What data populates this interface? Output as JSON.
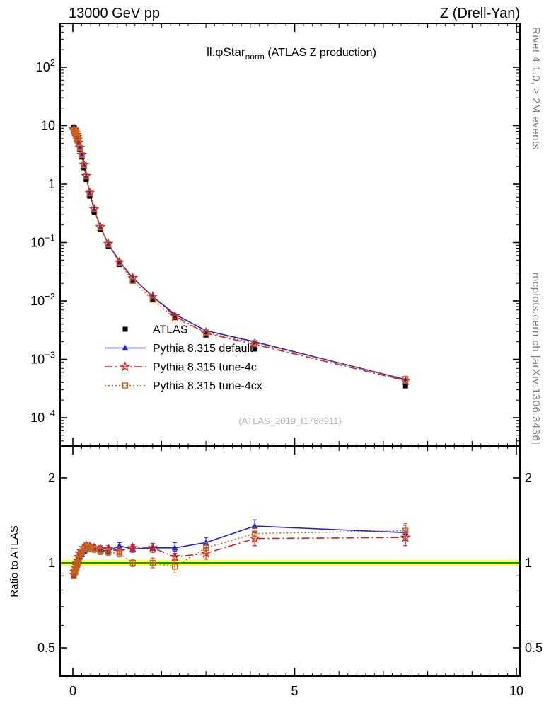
{
  "header": {
    "left": "13000 GeV pp",
    "right": "Z (Drell-Yan)"
  },
  "titles": {
    "observable": "ll.φStar",
    "subscript": "norm",
    "suffix": " (ATLAS Z production)"
  },
  "watermark": "(ATLAS_2019_I1768911)",
  "side_labels": {
    "rivet": "Rivet 4.1.0, ≥ 2M events",
    "mcplots": "mcplots.cern.ch [arXiv:1306.3436]"
  },
  "ratio_axis_label": "Ratio to ATLAS",
  "colors": {
    "band": "#ffff4c",
    "reference_line": "#00a000",
    "frame": "#000000"
  },
  "chart_data": {
    "type": "scatter-line",
    "title": "ll.φStar_norm (ATLAS Z production)",
    "xlabel": "",
    "ylabel": "",
    "ratio_ylabel": "Ratio to ATLAS",
    "legend_position": "middle-left",
    "x_axis": {
      "lim": [
        -0.29,
        10.08
      ],
      "major_ticks": [
        0,
        5,
        10
      ],
      "minor_tick_step": 1
    },
    "main_panel": {
      "yscale": "log",
      "ylim": [
        3.3e-05,
        560
      ],
      "tick_exponents": [
        2,
        1,
        0,
        -1,
        -2,
        -3,
        -4
      ]
    },
    "ratio_panel": {
      "yscale": "log",
      "ylim": [
        0.4,
        2.59
      ],
      "ticks": [
        2,
        1,
        0.5
      ],
      "ref_band": {
        "center": 1.0,
        "half_width": 0.025
      }
    },
    "x": [
      0.02,
      0.035,
      0.05,
      0.065,
      0.08,
      0.095,
      0.11,
      0.13,
      0.16,
      0.2,
      0.25,
      0.3,
      0.38,
      0.48,
      0.62,
      0.8,
      1.05,
      1.35,
      1.8,
      2.3,
      3.0,
      4.1,
      7.5
    ],
    "series": [
      {
        "name": "ATLAS",
        "role": "reference-data",
        "color": "#000000",
        "marker": "filled-square",
        "line": "none",
        "y_err_rel": 0.04,
        "values": [
          9.5,
          9.0,
          8.4,
          7.8,
          7.1,
          6.4,
          5.7,
          4.9,
          3.9,
          2.9,
          1.9,
          1.2,
          0.62,
          0.33,
          0.165,
          0.085,
          0.042,
          0.022,
          0.0105,
          0.0052,
          0.0026,
          0.0015,
          0.00035
        ]
      },
      {
        "name": "Pythia 8.315 default",
        "role": "mc-prediction",
        "color": "#2222cc",
        "marker": "filled-triangle",
        "line": "solid",
        "values": [
          8.55,
          8.28,
          7.81,
          7.41,
          6.82,
          6.27,
          5.7,
          5.0,
          4.1,
          3.1,
          2.09,
          1.34,
          0.7,
          0.37,
          0.183,
          0.0935,
          0.0483,
          0.0246,
          0.0119,
          0.0059,
          0.0031,
          0.002,
          0.00045
        ],
        "ratio": [
          0.9,
          0.92,
          0.93,
          0.95,
          0.96,
          0.98,
          1.0,
          1.02,
          1.05,
          1.07,
          1.1,
          1.12,
          1.13,
          1.12,
          1.11,
          1.1,
          1.15,
          1.12,
          1.13,
          1.13,
          1.18,
          1.35,
          1.28
        ],
        "ratio_err": [
          0.02,
          0.02,
          0.02,
          0.02,
          0.02,
          0.02,
          0.02,
          0.02,
          0.02,
          0.02,
          0.02,
          0.03,
          0.03,
          0.03,
          0.03,
          0.03,
          0.03,
          0.03,
          0.04,
          0.05,
          0.05,
          0.07,
          0.08
        ]
      },
      {
        "name": "Pythia 8.315 tune-4c",
        "role": "mc-prediction",
        "color": "#cc2222",
        "marker": "open-star",
        "line": "dash-dot",
        "values": [
          8.65,
          8.37,
          7.9,
          7.49,
          6.96,
          6.4,
          5.81,
          5.15,
          4.21,
          3.19,
          2.15,
          1.38,
          0.71,
          0.373,
          0.185,
          0.0952,
          0.0462,
          0.0249,
          0.0119,
          0.0055,
          0.0028,
          0.0018,
          0.00043
        ],
        "ratio": [
          0.91,
          0.93,
          0.94,
          0.96,
          0.98,
          1.0,
          1.02,
          1.05,
          1.08,
          1.1,
          1.13,
          1.15,
          1.14,
          1.13,
          1.12,
          1.12,
          1.1,
          1.13,
          1.13,
          1.05,
          1.08,
          1.22,
          1.23
        ],
        "ratio_err": [
          0.02,
          0.02,
          0.02,
          0.02,
          0.02,
          0.02,
          0.02,
          0.02,
          0.02,
          0.02,
          0.02,
          0.03,
          0.03,
          0.03,
          0.03,
          0.03,
          0.03,
          0.03,
          0.04,
          0.05,
          0.05,
          0.07,
          0.08
        ]
      },
      {
        "name": "Pythia 8.315 tune-4cx",
        "role": "mc-prediction",
        "color": "#c06a1e",
        "marker": "open-square",
        "line": "dotted",
        "values": [
          8.55,
          8.28,
          7.9,
          7.41,
          6.89,
          6.34,
          5.76,
          5.1,
          4.17,
          3.16,
          2.13,
          1.37,
          0.7,
          0.37,
          0.182,
          0.0927,
          0.0454,
          0.022,
          0.0105,
          0.005,
          0.0029,
          0.0019,
          0.00046
        ],
        "ratio": [
          0.9,
          0.92,
          0.94,
          0.95,
          0.97,
          0.99,
          1.01,
          1.04,
          1.07,
          1.09,
          1.12,
          1.14,
          1.13,
          1.12,
          1.1,
          1.09,
          1.08,
          1.0,
          1.0,
          0.97,
          1.13,
          1.27,
          1.3
        ],
        "ratio_err": [
          0.02,
          0.02,
          0.02,
          0.02,
          0.02,
          0.02,
          0.02,
          0.02,
          0.02,
          0.02,
          0.02,
          0.03,
          0.03,
          0.03,
          0.03,
          0.03,
          0.03,
          0.03,
          0.04,
          0.05,
          0.05,
          0.07,
          0.08
        ]
      }
    ]
  }
}
